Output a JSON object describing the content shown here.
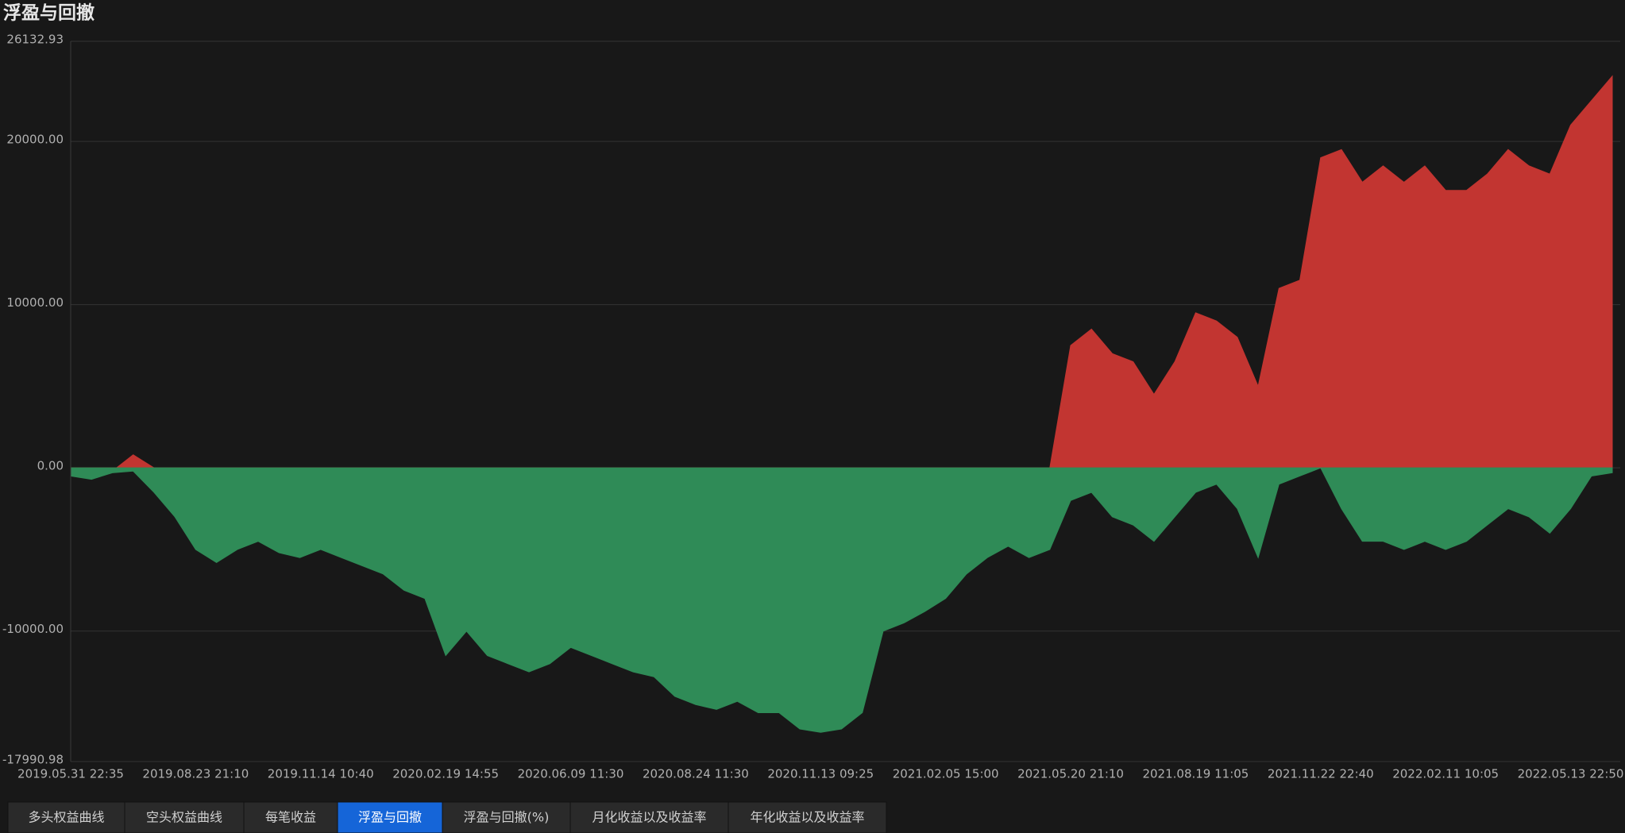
{
  "chart_data": {
    "type": "area",
    "title": "浮盈与回撤",
    "categories": [
      "2019.05.31 22:35",
      null,
      null,
      null,
      null,
      null,
      "2019.08.23 21:10",
      null,
      null,
      null,
      null,
      null,
      "2019.11.14 10:40",
      null,
      null,
      null,
      null,
      null,
      "2020.02.19 14:55",
      null,
      null,
      null,
      null,
      null,
      "2020.06.09 11:30",
      null,
      null,
      null,
      null,
      null,
      "2020.08.24 11:30",
      null,
      null,
      null,
      null,
      null,
      "2020.11.13 09:25",
      null,
      null,
      null,
      null,
      null,
      "2021.02.05 15:00",
      null,
      null,
      null,
      null,
      null,
      "2021.05.20 21:10",
      null,
      null,
      null,
      null,
      null,
      "2021.08.19 11:05",
      null,
      null,
      null,
      null,
      null,
      "2021.11.22 22:40",
      null,
      null,
      null,
      null,
      null,
      "2022.02.11 10:05",
      null,
      null,
      null,
      null,
      null,
      "2022.05.13 22:50",
      null,
      null
    ],
    "series": [
      {
        "color": "#c23531",
        "values": [
          -300,
          -500,
          -200,
          800,
          0,
          0,
          0,
          0,
          0,
          0,
          0,
          0,
          0,
          0,
          0,
          0,
          0,
          0,
          0,
          0,
          0,
          0,
          0,
          0,
          0,
          0,
          0,
          0,
          0,
          0,
          0,
          0,
          0,
          0,
          0,
          0,
          0,
          0,
          0,
          0,
          0,
          0,
          0,
          0,
          0,
          0,
          0,
          0,
          7500,
          8500,
          7000,
          6500,
          4500,
          6500,
          9500,
          9000,
          8000,
          5000,
          11000,
          11500,
          19000,
          19500,
          17500,
          18500,
          17500,
          18500,
          17000,
          17000,
          18000,
          19500,
          18500,
          18000,
          21000,
          22500,
          24000
        ]
      },
      {
        "color": "#2f8b57",
        "values": [
          -500,
          -700,
          -300,
          -200,
          -1500,
          -3000,
          -5000,
          -5800,
          -5000,
          -4500,
          -5200,
          -5500,
          -5000,
          -5500,
          -6000,
          -6500,
          -7500,
          -8000,
          -11500,
          -10000,
          -11500,
          -12000,
          -12500,
          -12000,
          -11000,
          -11500,
          -12000,
          -12500,
          -12800,
          -14000,
          -14500,
          -14800,
          -14300,
          -15000,
          -15000,
          -16000,
          -16200,
          -16000,
          -15000,
          -10000,
          -9500,
          -8800,
          -8000,
          -6500,
          -5500,
          -4800,
          -5500,
          -5000,
          -2000,
          -1500,
          -3000,
          -3500,
          -4500,
          -3000,
          -1500,
          -1000,
          -2500,
          -5500,
          -1000,
          -500,
          0,
          -2500,
          -4500,
          -4500,
          -5000,
          -4500,
          -5000,
          -4500,
          -3500,
          -2500,
          -3000,
          -4000,
          -2500,
          -500,
          -300
        ]
      }
    ],
    "ylim": [
      -17990.98,
      26132.93
    ],
    "yticks": [
      {
        "value": 26132.93,
        "label": "26132.93"
      },
      {
        "value": 20000,
        "label": "20000.00"
      },
      {
        "value": 10000,
        "label": "10000.00"
      },
      {
        "value": 0,
        "label": "0.00"
      },
      {
        "value": -10000,
        "label": "-10000.00"
      },
      {
        "value": -17990.98,
        "label": "-17990.98"
      }
    ],
    "grid": true
  },
  "tabs": [
    "多头权益曲线",
    "空头权益曲线",
    "每笔收益",
    "浮盈与回撤",
    "浮盈与回撤(%)",
    "月化收益以及收益率",
    "年化收益以及收益率"
  ],
  "active_tab": 3
}
